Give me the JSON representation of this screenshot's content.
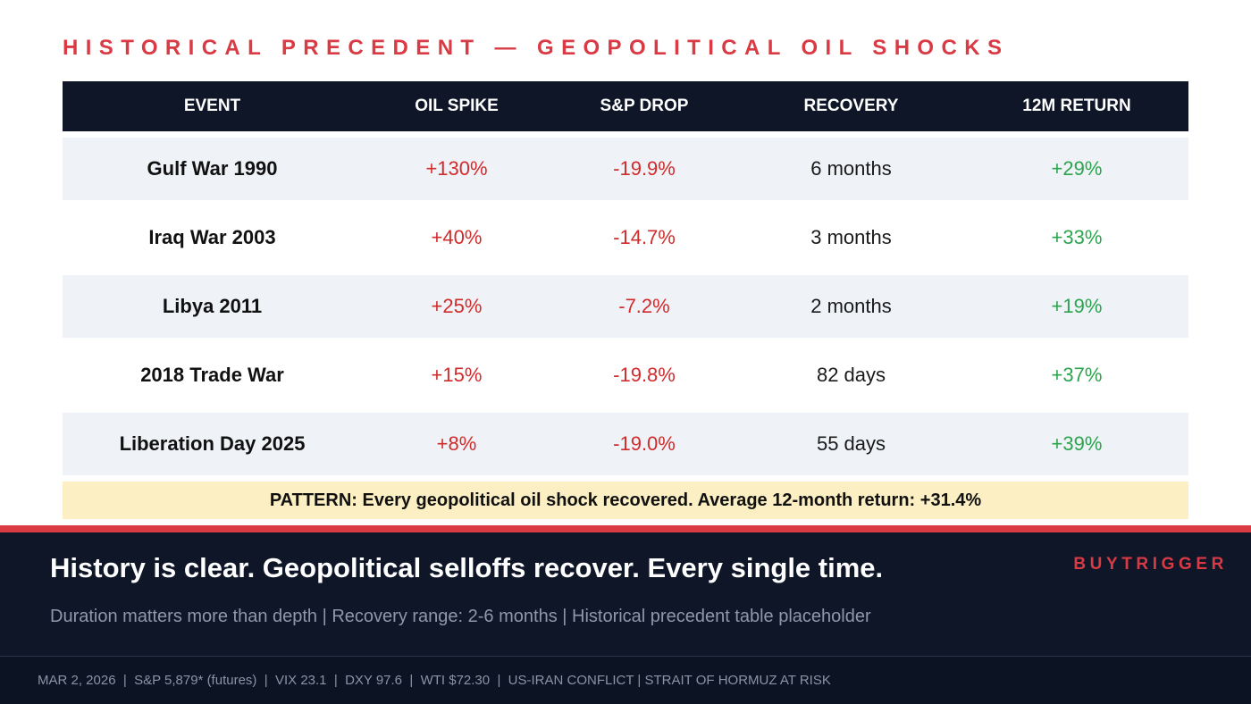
{
  "title": "HISTORICAL PRECEDENT — GEOPOLITICAL OIL SHOCKS",
  "table": {
    "headers": [
      "EVENT",
      "OIL SPIKE",
      "S&P DROP",
      "RECOVERY",
      "12M RETURN"
    ],
    "rows": [
      {
        "event": "Gulf War 1990",
        "oil_spike": "+130%",
        "sp_drop": "-19.9%",
        "recovery": "6 months",
        "return_12m": "+29%"
      },
      {
        "event": "Iraq War 2003",
        "oil_spike": "+40%",
        "sp_drop": "-14.7%",
        "recovery": "3 months",
        "return_12m": "+33%"
      },
      {
        "event": "Libya 2011",
        "oil_spike": "+25%",
        "sp_drop": "-7.2%",
        "recovery": "2 months",
        "return_12m": "+19%"
      },
      {
        "event": "2018 Trade War",
        "oil_spike": "+15%",
        "sp_drop": "-19.8%",
        "recovery": "82 days",
        "return_12m": "+37%"
      },
      {
        "event": "Liberation Day 2025",
        "oil_spike": "+8%",
        "sp_drop": "-19.0%",
        "recovery": "55 days",
        "return_12m": "+39%"
      }
    ]
  },
  "pattern": "PATTERN: Every geopolitical oil shock recovered. Average 12-month return: +31.4%",
  "footer": {
    "headline": "History is clear. Geopolitical selloffs recover. Every single time.",
    "brand": "BUYTRIGGER",
    "subline": "Duration matters more than depth | Recovery range: 2-6 months | Historical precedent table placeholder",
    "ticker": "MAR 2, 2026  |  S&P 5,879* (futures)  |  VIX 23.1  |  DXY 97.6  |  WTI $72.30  |  US-IRAN CONFLICT | STRAIT OF HORMUZ AT RISK"
  },
  "colors": {
    "accent_red": "#d93a44",
    "navy": "#0e1628",
    "negative": "#d22b2b",
    "positive": "#2ca44e",
    "pattern_bg": "#fcefc4"
  }
}
